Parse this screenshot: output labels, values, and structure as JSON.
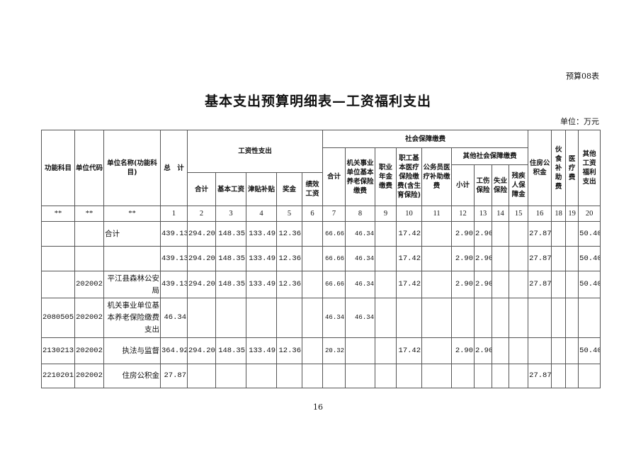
{
  "form_no": "预算08表",
  "title": "基本支出预算明细表—工资福利支出",
  "unit": "单位：万元",
  "page_number": "16",
  "headers": {
    "func_subject": "功能科目",
    "unit_code": "单位代码",
    "unit_name": "单位名称(功能科目)",
    "total": "总　计",
    "wage_group": "工资性支出",
    "wage_cols": [
      "合计",
      "基本工资",
      "津贴补贴",
      "奖金",
      "绩效工资"
    ],
    "social_group": "社会保障缴费",
    "social_cols": [
      "合计",
      "机关事业单位基本养老保险缴费",
      "职业年金缴费",
      "职工基本医疗保险缴费(含生育保险)",
      "公务员医疗补助缴费"
    ],
    "other_social_group": "其他社会保障缴费",
    "other_social_cols": [
      "小计",
      "工伤保险",
      "失业保险",
      "残疾人保障金"
    ],
    "housing_fund": "住房公积金",
    "meal_subsidy": "伙食补助费",
    "medical": "医疗费",
    "other_welfare": "其他工资福利支出"
  },
  "index_row": [
    "**",
    "**",
    "**",
    "1",
    "2",
    "3",
    "4",
    "5",
    "6",
    "7",
    "8",
    "9",
    "10",
    "11",
    "12",
    "13",
    "14",
    "15",
    "16",
    "18",
    "19",
    "20"
  ],
  "rows": [
    [
      "",
      "",
      "合计",
      "439.13",
      "294.20",
      "148.35",
      "133.49",
      "12.36",
      "",
      "66.66",
      "46.34",
      "",
      "17.42",
      "",
      "2.90",
      "2.90",
      "",
      "",
      "27.87",
      "",
      "",
      "50.40"
    ],
    [
      "",
      "",
      "",
      "439.13",
      "294.20",
      "148.35",
      "133.49",
      "12.36",
      "",
      "66.66",
      "46.34",
      "",
      "17.42",
      "",
      "2.90",
      "2.90",
      "",
      "",
      "27.87",
      "",
      "",
      "50.40"
    ],
    [
      "",
      "202002",
      "平江县森林公安局",
      "439.13",
      "294.20",
      "148.35",
      "133.49",
      "12.36",
      "",
      "66.66",
      "46.34",
      "",
      "17.42",
      "",
      "2.90",
      "2.90",
      "",
      "",
      "27.87",
      "",
      "",
      "50.40"
    ],
    [
      "2080505",
      "202002",
      "机关事业单位基本养老保险缴费支出",
      "46.34",
      "",
      "",
      "",
      "",
      "",
      "46.34",
      "46.34",
      "",
      "",
      "",
      "",
      "",
      "",
      "",
      "",
      "",
      "",
      ""
    ],
    [
      "2130213",
      "202002",
      "执法与监督",
      "364.92",
      "294.20",
      "148.35",
      "133.49",
      "12.36",
      "",
      "20.32",
      "",
      "",
      "17.42",
      "",
      "2.90",
      "2.90",
      "",
      "",
      "",
      "",
      "",
      "50.40"
    ],
    [
      "2210201",
      "202002",
      "住房公积金",
      "27.87",
      "",
      "",
      "",
      "",
      "",
      "",
      "",
      "",
      "",
      "",
      "",
      "",
      "",
      "",
      "27.87",
      "",
      "",
      ""
    ]
  ]
}
